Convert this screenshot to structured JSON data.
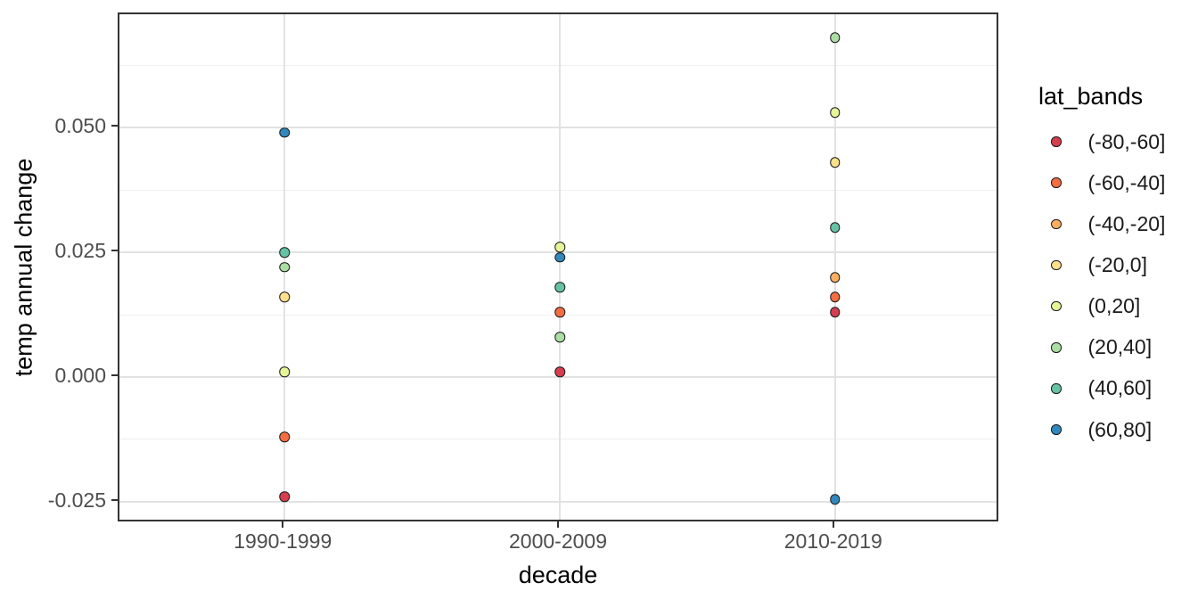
{
  "chart_data": {
    "type": "scatter",
    "title": "",
    "xlabel": "decade",
    "ylabel": "temp annual change",
    "categories": [
      "1990-1999",
      "2000-2009",
      "2010-2019"
    ],
    "y_axis": {
      "tick_labels": [
        "0.050",
        "0.025",
        "0.000",
        "-0.025"
      ],
      "tick_values": [
        0.05,
        0.025,
        0.0,
        -0.025
      ],
      "minor_tick_values": [
        0.0625,
        0.0375,
        0.0125,
        -0.0125
      ],
      "range": [
        -0.0293,
        0.0727
      ],
      "grid": true
    },
    "legend": {
      "title": "lat_bands",
      "position": "right",
      "entries": [
        {
          "label": "(-80,-60]",
          "color": "#d53e4f"
        },
        {
          "label": "(-60,-40]",
          "color": "#f46d43"
        },
        {
          "label": "(-40,-20]",
          "color": "#fdae61"
        },
        {
          "label": "(-20,0]",
          "color": "#fee08b"
        },
        {
          "label": "(0,20]",
          "color": "#e6f598"
        },
        {
          "label": "(20,40]",
          "color": "#abdda4"
        },
        {
          "label": "(40,60]",
          "color": "#66c2a5"
        },
        {
          "label": "(60,80]",
          "color": "#3288bd"
        }
      ]
    },
    "series": [
      {
        "name": "(-80,-60]",
        "color": "#d53e4f",
        "values": [
          -0.024,
          0.001,
          0.013
        ]
      },
      {
        "name": "(-60,-40]",
        "color": "#f46d43",
        "values": [
          -0.012,
          0.013,
          0.016
        ]
      },
      {
        "name": "(-40,-20]",
        "color": "#fdae61",
        "values": [
          null,
          null,
          0.02
        ]
      },
      {
        "name": "(-20,0]",
        "color": "#fee08b",
        "values": [
          0.016,
          null,
          0.043
        ]
      },
      {
        "name": "(0,20]",
        "color": "#e6f598",
        "values": [
          0.001,
          0.026,
          0.053
        ]
      },
      {
        "name": "(20,40]",
        "color": "#abdda4",
        "values": [
          0.022,
          0.008,
          0.068
        ]
      },
      {
        "name": "(40,60]",
        "color": "#66c2a5",
        "values": [
          0.025,
          0.018,
          0.03
        ]
      },
      {
        "name": "(60,80]",
        "color": "#3288bd",
        "values": [
          0.049,
          0.024,
          -0.0245
        ]
      }
    ]
  }
}
